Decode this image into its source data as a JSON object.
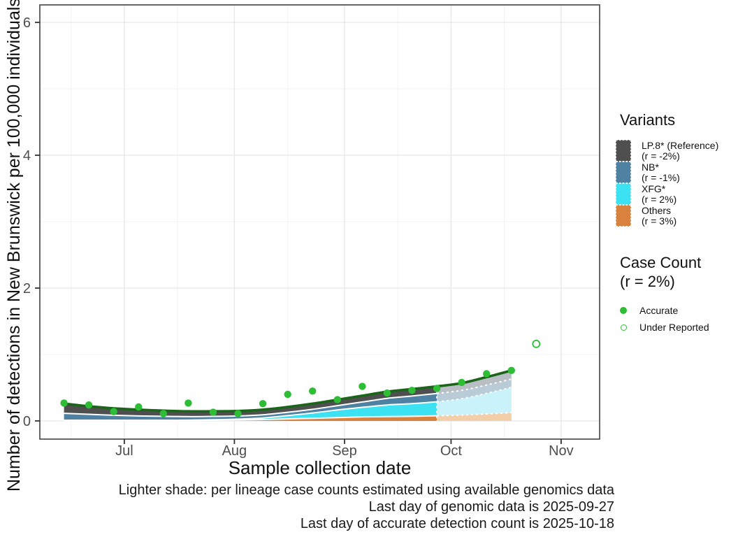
{
  "figure": {
    "y_axis_title": "Number of detections in New Brunswick per 100,000 individuals",
    "x_axis_title": "Sample collection date",
    "caption_lines": [
      "Lighter shade: per lineage case counts estimated using available genomics data",
      "Last day of genomic data is 2025-09-27",
      "Last day of accurate detection count is 2025-10-18"
    ]
  },
  "legend": {
    "variants": {
      "title": "Variants",
      "entries": [
        {
          "label": "LP.8* (Reference)",
          "rate": "(r = -2%)",
          "color": "#4F4F4F",
          "light_color": "#B8BEC4"
        },
        {
          "label": "NB*",
          "rate": "(r = -1%)",
          "color": "#4E81A2",
          "light_color": "#BACBD8"
        },
        {
          "label": "XFG*",
          "rate": "(r = 2%)",
          "color": "#3CE1F2",
          "light_color": "#C9F2FA"
        },
        {
          "label": "Others",
          "rate": "(r = 3%)",
          "color": "#D9823E",
          "light_color": "#F2CFA8"
        }
      ]
    },
    "case_count": {
      "title_line1": "Case Count",
      "title_line2": "(r = 2%)",
      "entries": [
        {
          "label": "Accurate",
          "symbol": "filled-dot"
        },
        {
          "label": "Under Reported",
          "symbol": "open-dot"
        }
      ]
    }
  },
  "chart_data": {
    "type": "area",
    "title": "",
    "xlabel": "Sample collection date",
    "ylabel": "Number of detections in New Brunswick per 100,000 individuals",
    "stack_order_bottom_to_top": [
      "Others",
      "XFG*",
      "NB*",
      "LP.8* (Reference)"
    ],
    "x_dates": [
      "2025-06-14",
      "2025-06-21",
      "2025-06-28",
      "2025-07-05",
      "2025-07-12",
      "2025-07-19",
      "2025-07-26",
      "2025-08-02",
      "2025-08-09",
      "2025-08-16",
      "2025-08-23",
      "2025-08-30",
      "2025-09-06",
      "2025-09-13",
      "2025-09-20",
      "2025-09-27",
      "2025-10-04",
      "2025-10-11",
      "2025-10-18"
    ],
    "series": [
      {
        "name": "LP.8* (Reference)",
        "values": [
          0.145,
          0.12,
          0.105,
          0.095,
          0.085,
          0.08,
          0.077,
          0.075,
          0.077,
          0.08,
          0.085,
          0.09,
          0.095,
          0.1,
          0.105,
          0.107,
          0.11,
          0.12,
          0.13
        ]
      },
      {
        "name": "NB*",
        "values": [
          0.105,
          0.09,
          0.075,
          0.065,
          0.06,
          0.053,
          0.05,
          0.048,
          0.048,
          0.05,
          0.055,
          0.065,
          0.08,
          0.1,
          0.115,
          0.125,
          0.125,
          0.125,
          0.125
        ]
      },
      {
        "name": "XFG*",
        "values": [
          0.004,
          0.004,
          0.004,
          0.004,
          0.004,
          0.005,
          0.008,
          0.013,
          0.025,
          0.05,
          0.08,
          0.115,
          0.145,
          0.175,
          0.19,
          0.21,
          0.245,
          0.31,
          0.38
        ]
      },
      {
        "name": "Others",
        "values": [
          0.006,
          0.006,
          0.006,
          0.006,
          0.006,
          0.007,
          0.01,
          0.014,
          0.02,
          0.03,
          0.04,
          0.05,
          0.06,
          0.065,
          0.07,
          0.078,
          0.09,
          0.105,
          0.125
        ]
      }
    ],
    "case_counts": {
      "accurate": {
        "dates": [
          "2025-06-14",
          "2025-06-21",
          "2025-06-28",
          "2025-07-05",
          "2025-07-12",
          "2025-07-19",
          "2025-07-26",
          "2025-08-02",
          "2025-08-09",
          "2025-08-16",
          "2025-08-23",
          "2025-08-30",
          "2025-09-06",
          "2025-09-13",
          "2025-09-20",
          "2025-09-27",
          "2025-10-04",
          "2025-10-11",
          "2025-10-18"
        ],
        "values": [
          0.27,
          0.24,
          0.14,
          0.21,
          0.11,
          0.27,
          0.13,
          0.11,
          0.26,
          0.4,
          0.45,
          0.32,
          0.52,
          0.42,
          0.46,
          0.49,
          0.58,
          0.71,
          0.76
        ]
      },
      "under_reported": {
        "dates": [
          "2025-10-25"
        ],
        "values": [
          1.16
        ]
      }
    },
    "last_genomic_date": "2025-09-27",
    "last_accurate_date": "2025-10-18",
    "x_ticks": [
      {
        "label": "Jul",
        "date": "2025-07-01"
      },
      {
        "label": "Aug",
        "date": "2025-08-01"
      },
      {
        "label": "Sep",
        "date": "2025-09-01"
      },
      {
        "label": "Oct",
        "date": "2025-10-01"
      },
      {
        "label": "Nov",
        "date": "2025-11-01"
      }
    ],
    "x_minor_dates": [
      "2025-06-16",
      "2025-07-16",
      "2025-08-16",
      "2025-09-16",
      "2025-10-16"
    ],
    "y_ticks": [
      0,
      2,
      4,
      6
    ],
    "y_minor": [
      1,
      3,
      5
    ],
    "ylim": [
      -0.28,
      6.27
    ],
    "x_domain": [
      "2025-06-07",
      "2025-11-11"
    ],
    "grid": true,
    "legend_position": "right",
    "colors": {
      "total_line": "#1A651A",
      "dot": "#2EBE35",
      "separator": "#FFFFFF",
      "grid_major": "#e7e7e7",
      "grid_minor": "#f3f3f3",
      "panel_border": "#4d4d4d",
      "tick": "#333333",
      "tick_label": "#4d4d4d"
    }
  }
}
